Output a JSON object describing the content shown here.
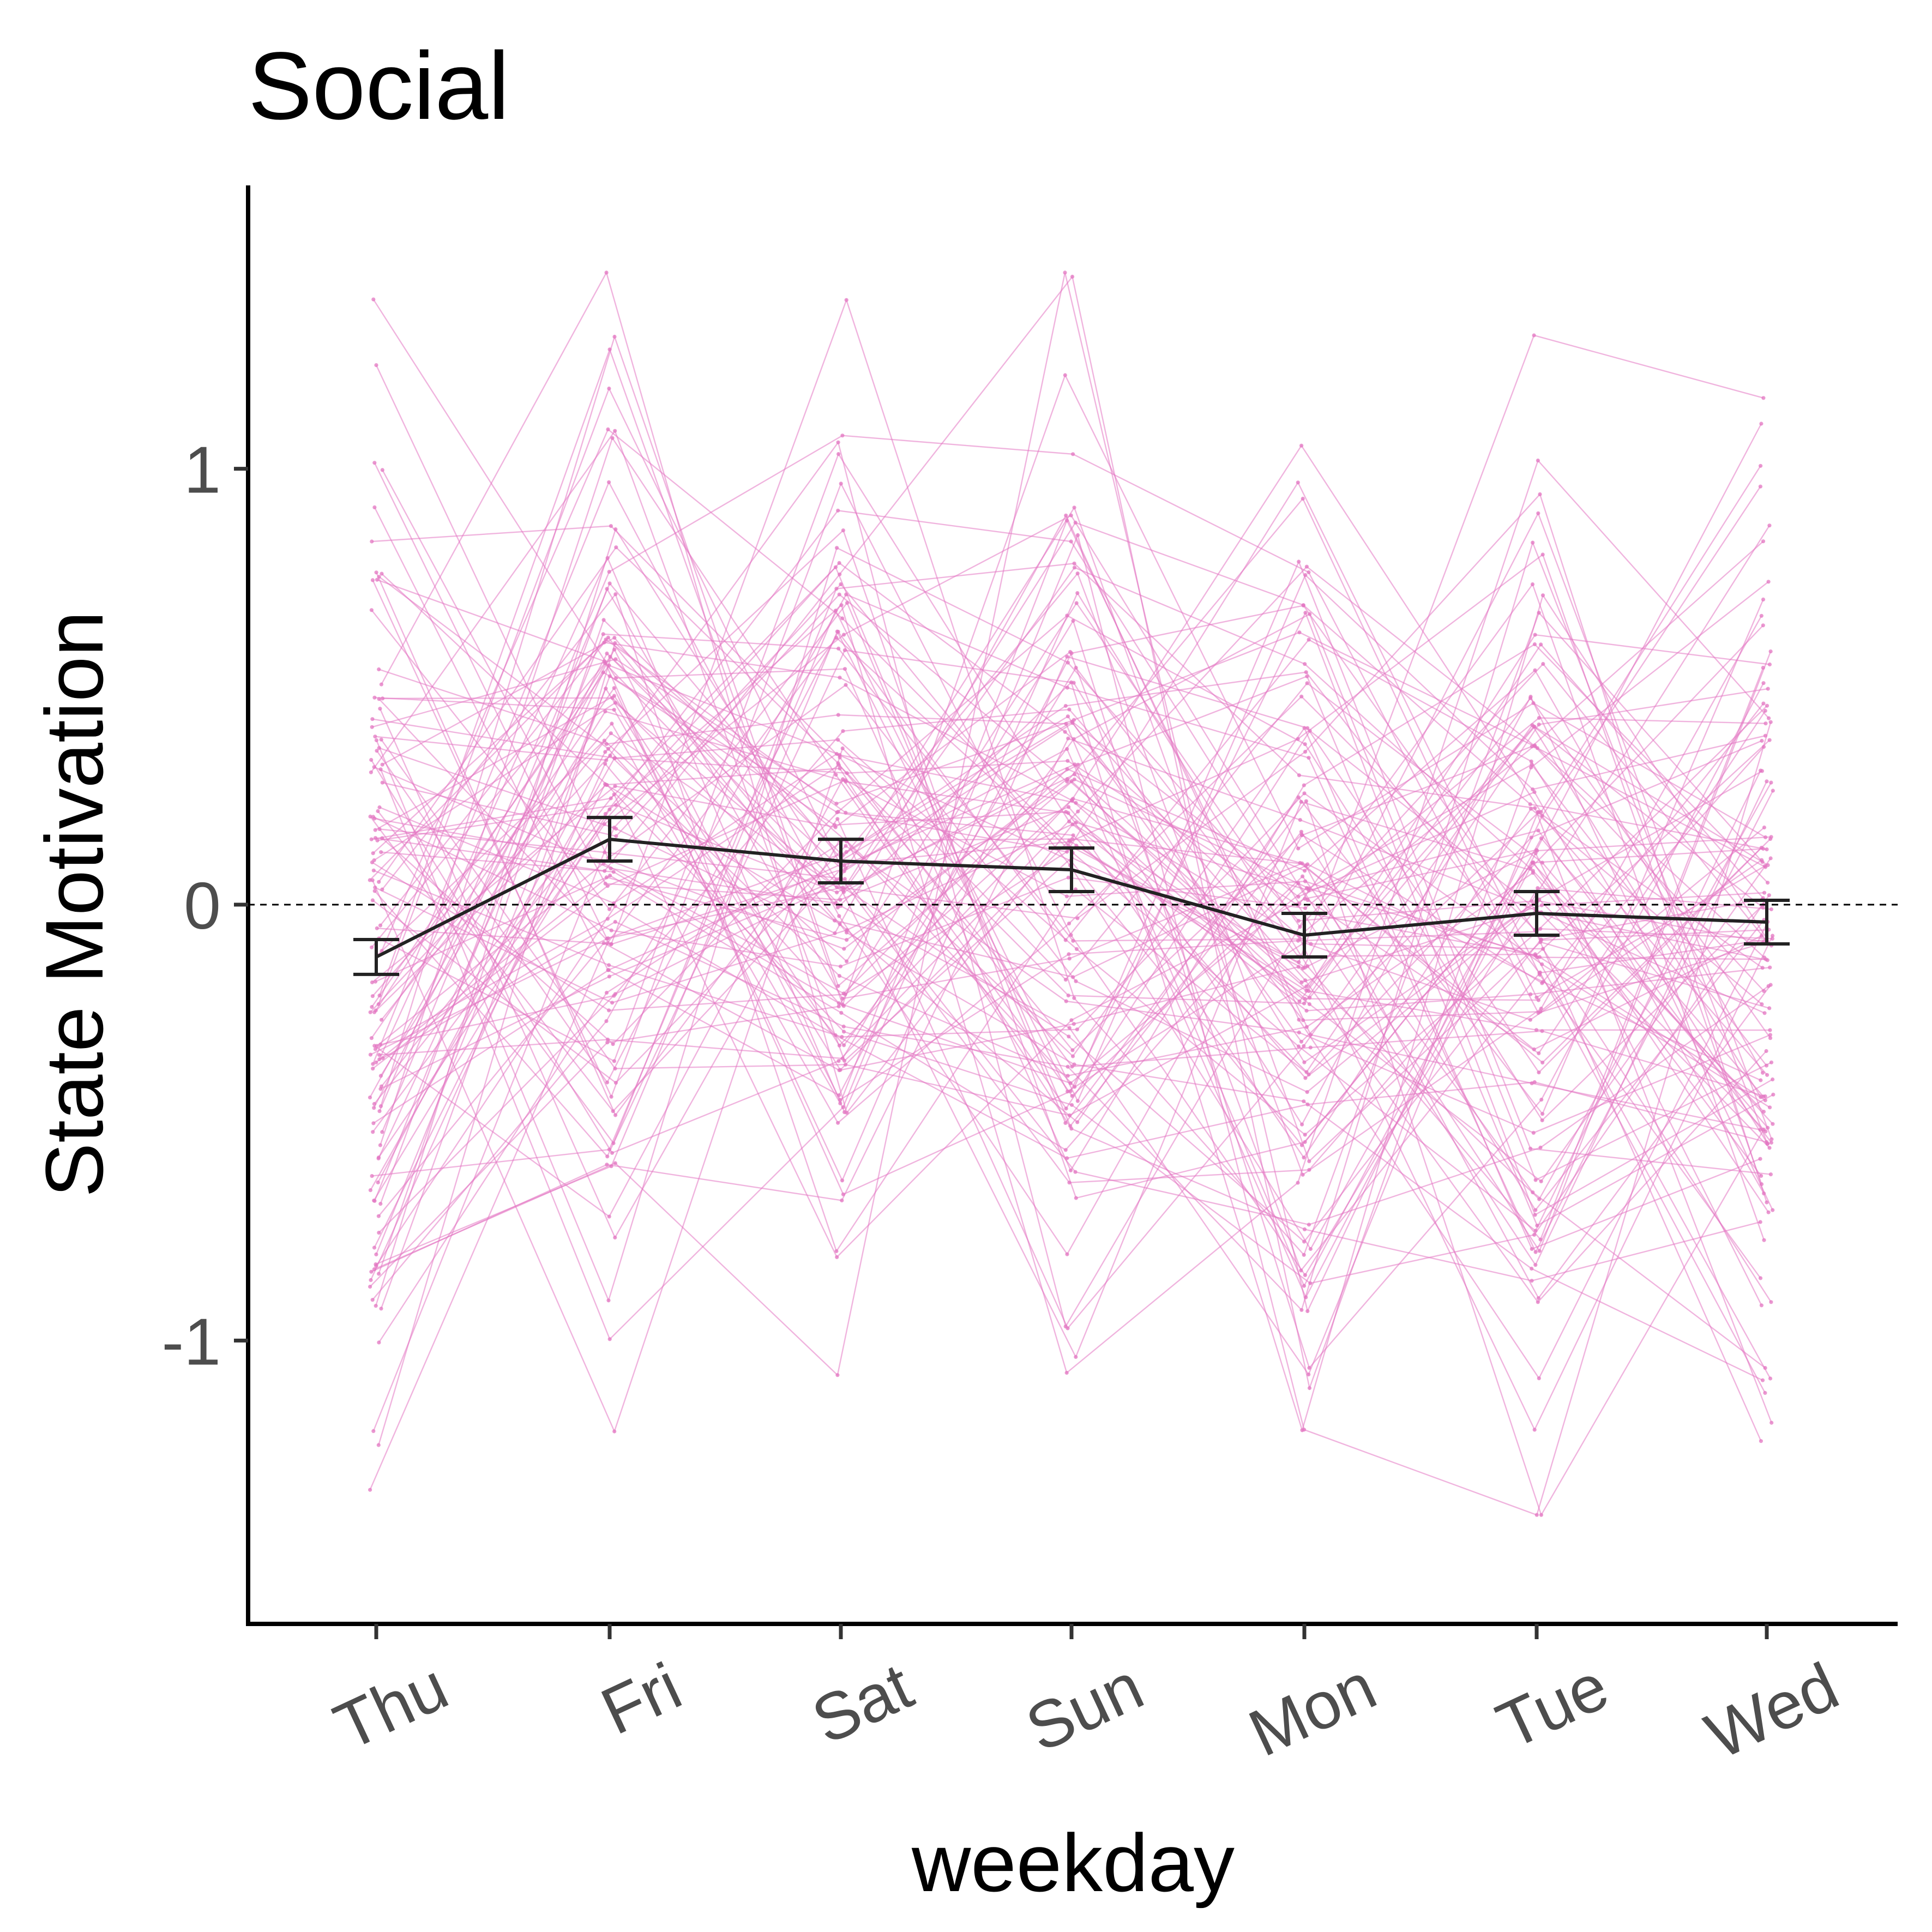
{
  "chart_data": {
    "type": "line",
    "title": "Social",
    "xlabel": "weekday",
    "ylabel": "State Motivation",
    "categories": [
      "Thu",
      "Fri",
      "Sat",
      "Sun",
      "Mon",
      "Tue",
      "Wed"
    ],
    "y_ticks": [
      "-1",
      "0",
      "1"
    ],
    "ylim": [
      -1.65,
      1.65
    ],
    "grid": false,
    "reference_line": 0,
    "mean_series": {
      "values": [
        -0.12,
        0.15,
        0.1,
        0.08,
        -0.07,
        -0.02,
        -0.04
      ],
      "se": [
        0.04,
        0.05,
        0.05,
        0.05,
        0.05,
        0.05,
        0.05
      ]
    },
    "individual_lines": {
      "count": 120,
      "distribution": "approximately normal per weekday, sd about 0.5, min about -1.4, max about 1.45"
    },
    "colors": {
      "individual": "#e377c2",
      "mean": "#222222",
      "axis": "#000000",
      "tick_label": "#4d4d4d"
    }
  }
}
